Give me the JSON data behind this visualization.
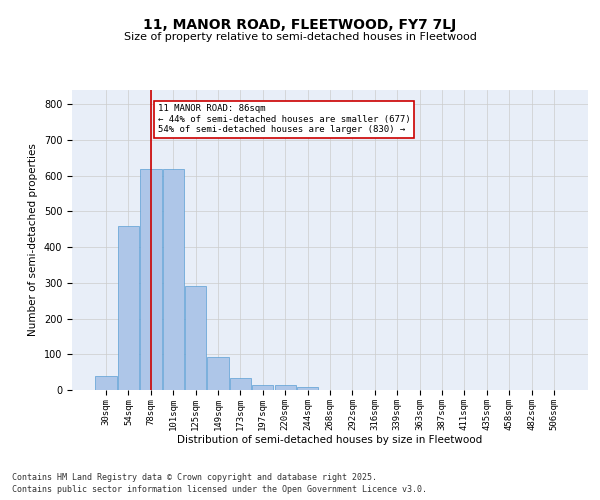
{
  "title": "11, MANOR ROAD, FLEETWOOD, FY7 7LJ",
  "subtitle": "Size of property relative to semi-detached houses in Fleetwood",
  "xlabel": "Distribution of semi-detached houses by size in Fleetwood",
  "ylabel": "Number of semi-detached properties",
  "bin_labels": [
    "30sqm",
    "54sqm",
    "78sqm",
    "101sqm",
    "125sqm",
    "149sqm",
    "173sqm",
    "197sqm",
    "220sqm",
    "244sqm",
    "268sqm",
    "292sqm",
    "316sqm",
    "339sqm",
    "363sqm",
    "387sqm",
    "411sqm",
    "435sqm",
    "458sqm",
    "482sqm",
    "506sqm"
  ],
  "bar_heights": [
    38,
    460,
    620,
    618,
    290,
    93,
    33,
    15,
    13,
    9,
    0,
    0,
    0,
    0,
    0,
    0,
    0,
    0,
    0,
    0,
    0
  ],
  "bar_color": "#aec6e8",
  "bar_edge_color": "#5a9fd4",
  "grid_color": "#cccccc",
  "bg_color": "#e8eef8",
  "red_line_x": 2,
  "annotation_text": "11 MANOR ROAD: 86sqm\n← 44% of semi-detached houses are smaller (677)\n54% of semi-detached houses are larger (830) →",
  "annotation_box_color": "#ffffff",
  "annotation_box_edge": "#cc0000",
  "red_line_color": "#cc0000",
  "ylim": [
    0,
    840
  ],
  "yticks": [
    0,
    100,
    200,
    300,
    400,
    500,
    600,
    700,
    800
  ],
  "footer_line1": "Contains HM Land Registry data © Crown copyright and database right 2025.",
  "footer_line2": "Contains public sector information licensed under the Open Government Licence v3.0."
}
